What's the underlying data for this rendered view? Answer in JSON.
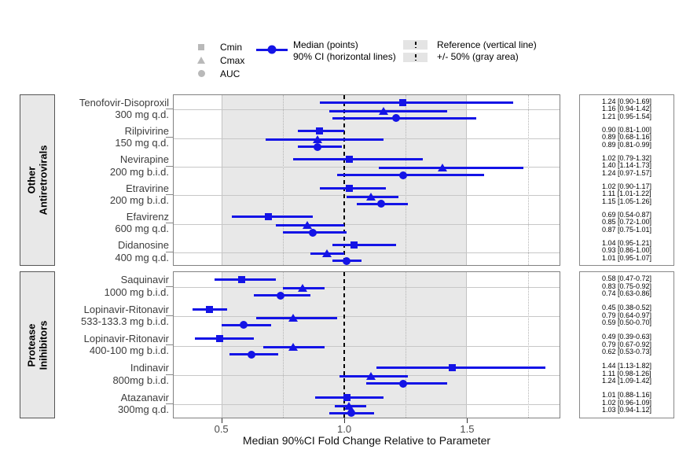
{
  "chart_data": {
    "type": "forest",
    "x_range": [
      0.303,
      1.879
    ],
    "reference_value": 1.0,
    "gray_band": [
      0.5,
      1.5
    ],
    "minor_gridlines": [
      0.75,
      1.25,
      1.75
    ],
    "axis": {
      "label": "Median 90%CI Fold Change Relative to Parameter",
      "tick_values": [
        0.5,
        1.0,
        1.5
      ],
      "tick_labels": [
        "0.5",
        "1.0",
        "1.5"
      ]
    },
    "colors": {
      "series_blue": "#1414e6",
      "band_gray": "#e8e8e8",
      "reference_line": "#000000",
      "legend_gray_marker": "#b9b9b9"
    },
    "legend": {
      "point_items": [
        {
          "shape": "square",
          "label": "Cmin"
        },
        {
          "shape": "triangle",
          "label": "Cmax"
        },
        {
          "shape": "circle",
          "label": "AUC"
        }
      ],
      "median_lines": [
        "Median (points)",
        "90% CI (horizontal lines)"
      ],
      "reference_lines": [
        "Reference (vertical line)",
        "+/- 50% (gray area)"
      ]
    },
    "panels": [
      {
        "strip_lines": [
          "Other",
          "Antiretrovirals"
        ],
        "drugs": [
          {
            "name": "Tenofovir-Disoproxil",
            "dose": "300 mg q.d.",
            "rows": [
              {
                "param": "Cmin",
                "median": 1.24,
                "lo": 0.9,
                "hi": 1.69,
                "text": "1.24 [0.90-1.69]"
              },
              {
                "param": "Cmax",
                "median": 1.16,
                "lo": 0.94,
                "hi": 1.42,
                "text": "1.16 [0.94-1.42]"
              },
              {
                "param": "AUC",
                "median": 1.21,
                "lo": 0.95,
                "hi": 1.54,
                "text": "1.21 [0.95-1.54]"
              }
            ]
          },
          {
            "name": "Rilpivirine",
            "dose": "150 mg q.d.",
            "rows": [
              {
                "param": "Cmin",
                "median": 0.9,
                "lo": 0.81,
                "hi": 1.0,
                "text": "0.90 [0.81-1.00]"
              },
              {
                "param": "Cmax",
                "median": 0.89,
                "lo": 0.68,
                "hi": 1.16,
                "text": "0.89 [0.68-1.16]"
              },
              {
                "param": "AUC",
                "median": 0.89,
                "lo": 0.81,
                "hi": 0.99,
                "text": "0.89 [0.81-0.99]"
              }
            ]
          },
          {
            "name": "Nevirapine",
            "dose": "200 mg b.i.d.",
            "rows": [
              {
                "param": "Cmin",
                "median": 1.02,
                "lo": 0.79,
                "hi": 1.32,
                "text": "1.02 [0.79-1.32]"
              },
              {
                "param": "Cmax",
                "median": 1.4,
                "lo": 1.14,
                "hi": 1.73,
                "text": "1.40 [1.14-1.73]"
              },
              {
                "param": "AUC",
                "median": 1.24,
                "lo": 0.97,
                "hi": 1.57,
                "text": "1.24 [0.97-1.57]"
              }
            ]
          },
          {
            "name": "Etravirine",
            "dose": "200 mg b.i.d.",
            "rows": [
              {
                "param": "Cmin",
                "median": 1.02,
                "lo": 0.9,
                "hi": 1.17,
                "text": "1.02 [0.90-1.17]"
              },
              {
                "param": "Cmax",
                "median": 1.11,
                "lo": 1.01,
                "hi": 1.22,
                "text": "1.11 [1.01-1.22]"
              },
              {
                "param": "AUC",
                "median": 1.15,
                "lo": 1.05,
                "hi": 1.26,
                "text": "1.15 [1.05-1.26]"
              }
            ]
          },
          {
            "name": "Efavirenz",
            "dose": "600 mg q.d.",
            "rows": [
              {
                "param": "Cmin",
                "median": 0.69,
                "lo": 0.54,
                "hi": 0.87,
                "text": "0.69 [0.54-0.87]"
              },
              {
                "param": "Cmax",
                "median": 0.85,
                "lo": 0.72,
                "hi": 1.0,
                "text": "0.85 [0.72-1.00]"
              },
              {
                "param": "AUC",
                "median": 0.87,
                "lo": 0.75,
                "hi": 1.01,
                "text": "0.87 [0.75-1.01]"
              }
            ]
          },
          {
            "name": "Didanosine",
            "dose": "400 mg q.d.",
            "rows": [
              {
                "param": "Cmin",
                "median": 1.04,
                "lo": 0.95,
                "hi": 1.21,
                "text": "1.04 [0.95-1.21]"
              },
              {
                "param": "Cmax",
                "median": 0.93,
                "lo": 0.86,
                "hi": 1.0,
                "text": "0.93 [0.86-1.00]"
              },
              {
                "param": "AUC",
                "median": 1.01,
                "lo": 0.95,
                "hi": 1.07,
                "text": "1.01 [0.95-1.07]"
              }
            ]
          }
        ]
      },
      {
        "strip_lines": [
          "Protease",
          "Inihibitors"
        ],
        "drugs": [
          {
            "name": "Saquinavir",
            "dose": "1000 mg b.i.d.",
            "rows": [
              {
                "param": "Cmin",
                "median": 0.58,
                "lo": 0.47,
                "hi": 0.72,
                "text": "0.58 [0.47-0.72]"
              },
              {
                "param": "Cmax",
                "median": 0.83,
                "lo": 0.75,
                "hi": 0.92,
                "text": "0.83 [0.75-0.92]"
              },
              {
                "param": "AUC",
                "median": 0.74,
                "lo": 0.63,
                "hi": 0.86,
                "text": "0.74 [0.63-0.86]"
              }
            ]
          },
          {
            "name": "Lopinavir-Ritonavir",
            "dose": "533-133.3 mg b.i.d.",
            "rows": [
              {
                "param": "Cmin",
                "median": 0.45,
                "lo": 0.38,
                "hi": 0.52,
                "text": "0.45 [0.38-0.52]"
              },
              {
                "param": "Cmax",
                "median": 0.79,
                "lo": 0.64,
                "hi": 0.97,
                "text": "0.79 [0.64-0.97]"
              },
              {
                "param": "AUC",
                "median": 0.59,
                "lo": 0.5,
                "hi": 0.7,
                "text": "0.59 [0.50-0.70]"
              }
            ]
          },
          {
            "name": "Lopinavir-Ritonavir",
            "dose": "400-100 mg b.i.d.",
            "rows": [
              {
                "param": "Cmin",
                "median": 0.49,
                "lo": 0.39,
                "hi": 0.63,
                "text": "0.49 [0.39-0.63]"
              },
              {
                "param": "Cmax",
                "median": 0.79,
                "lo": 0.67,
                "hi": 0.92,
                "text": "0.79 [0.67-0.92]"
              },
              {
                "param": "AUC",
                "median": 0.62,
                "lo": 0.53,
                "hi": 0.73,
                "text": "0.62 [0.53-0.73]"
              }
            ]
          },
          {
            "name": "Indinavir",
            "dose": "800mg b.i.d.",
            "rows": [
              {
                "param": "Cmin",
                "median": 1.44,
                "lo": 1.13,
                "hi": 1.82,
                "text": "1.44 [1.13-1.82]"
              },
              {
                "param": "Cmax",
                "median": 1.11,
                "lo": 0.98,
                "hi": 1.26,
                "text": "1.11 [0.98-1.26]"
              },
              {
                "param": "AUC",
                "median": 1.24,
                "lo": 1.09,
                "hi": 1.42,
                "text": "1.24 [1.09-1.42]"
              }
            ]
          },
          {
            "name": "Atazanavir",
            "dose": "300mg q.d.",
            "rows": [
              {
                "param": "Cmin",
                "median": 1.01,
                "lo": 0.88,
                "hi": 1.16,
                "text": "1.01 [0.88-1.16]"
              },
              {
                "param": "Cmax",
                "median": 1.02,
                "lo": 0.96,
                "hi": 1.09,
                "text": "1.02 [0.96-1.09]"
              },
              {
                "param": "AUC",
                "median": 1.03,
                "lo": 0.94,
                "hi": 1.12,
                "text": "1.03 [0.94-1.12]"
              }
            ]
          }
        ]
      }
    ]
  }
}
